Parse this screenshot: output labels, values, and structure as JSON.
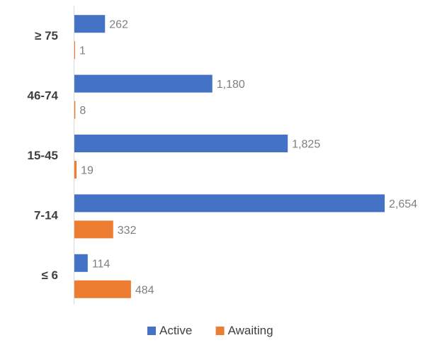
{
  "chart_data": {
    "type": "bar",
    "orientation": "horizontal",
    "categories": [
      "≥ 75",
      "46-74",
      "15-45",
      "7-14",
      "≤ 6"
    ],
    "series": [
      {
        "name": "Active",
        "color": "#4472C4",
        "values": [
          262,
          1180,
          1825,
          2654,
          114
        ]
      },
      {
        "name": "Awaiting",
        "color": "#ED7D31",
        "values": [
          1,
          8,
          19,
          332,
          484
        ]
      }
    ],
    "value_labels": {
      "Active": [
        "262",
        "1,180",
        "1,825",
        "2,654",
        "114"
      ],
      "Awaiting": [
        "1",
        "8",
        "19",
        "332",
        "484"
      ]
    },
    "title": "",
    "xlabel": "",
    "ylabel": "",
    "xlim": [
      0,
      2654
    ],
    "grid": false,
    "legend": "bottom-center"
  }
}
